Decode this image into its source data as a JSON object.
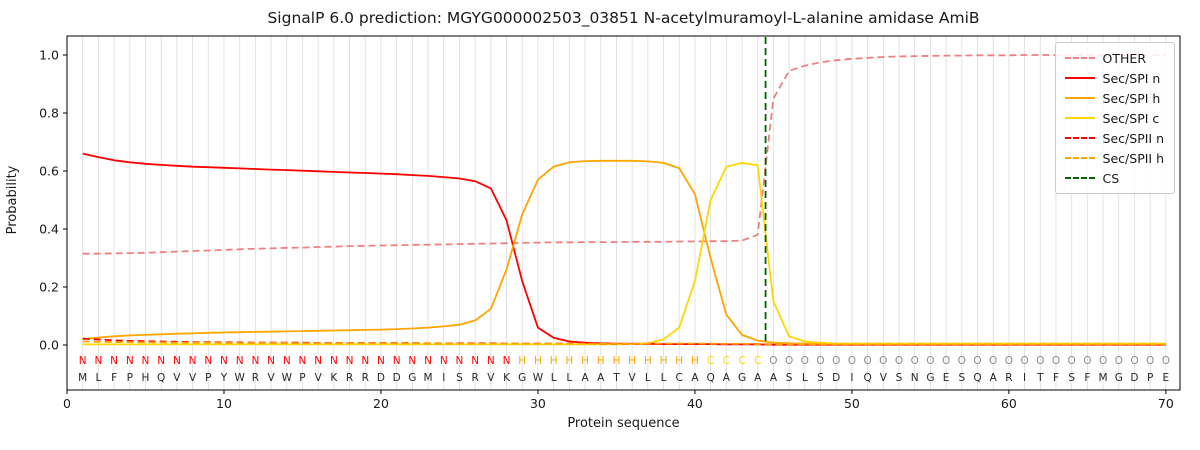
{
  "title": "SignalP 6.0 prediction: MGYG000002503_03851 N-acetylmuramoyl-L-alanine amidase AmiB",
  "colors": {
    "grid": "#dcdcdc",
    "frame": "#000000",
    "text": "#1a1a1a",
    "sequence_letter": "#262626",
    "other": "#f08080",
    "sec_spi_n": "#ff0000",
    "sec_spi_h": "#ffa500",
    "sec_spi_c": "#ffd700",
    "sec_spii_n": "#ff0000",
    "sec_spii_h": "#ffa500",
    "cs": "#006400"
  },
  "chart_data": {
    "type": "line",
    "title": "SignalP 6.0 prediction: MGYG000002503_03851 N-acetylmuramoyl-L-alanine amidase AmiB",
    "xlabel": "Protein sequence",
    "ylabel": "Probability",
    "xlim": [
      0,
      70.9
    ],
    "ylim": [
      0.0,
      1.0
    ],
    "x_range": [
      1,
      70
    ],
    "xticks": [
      0,
      10,
      20,
      30,
      40,
      50,
      60,
      70
    ],
    "yticks": [
      0.0,
      0.2,
      0.4,
      0.6,
      0.8,
      1.0
    ],
    "grid": "vertical line per residue",
    "legend_position": "upper right",
    "sequence": "MLFPHQVVPYWRVWPVKRRDDGMISRVKGWLLAATVLLCAQAGAASLSDIQVSNGESQARITFSFMGDPE",
    "region_labels": "NNNNNNNNNNNNNNNNNNNNNNNNNNNNHHHHHHHHHHHHCCCCOOOOOOOOOOOOOOOOOOOOOOOOOO",
    "region_colors": {
      "N": "#ff0000",
      "H": "#ffa500",
      "C": "#ffd700",
      "O": "#8c8c8c"
    },
    "series": [
      {
        "name": "OTHER",
        "style": "dashed",
        "color": "#f08080",
        "values": [
          0.315,
          0.315,
          0.316,
          0.317,
          0.318,
          0.32,
          0.322,
          0.324,
          0.326,
          0.328,
          0.33,
          0.332,
          0.333,
          0.335,
          0.336,
          0.338,
          0.339,
          0.341,
          0.342,
          0.343,
          0.344,
          0.345,
          0.346,
          0.347,
          0.348,
          0.349,
          0.35,
          0.351,
          0.352,
          0.353,
          0.354,
          0.354,
          0.355,
          0.355,
          0.355,
          0.356,
          0.356,
          0.356,
          0.357,
          0.357,
          0.358,
          0.358,
          0.36,
          0.38,
          0.85,
          0.945,
          0.963,
          0.975,
          0.982,
          0.987,
          0.99,
          0.993,
          0.995,
          0.996,
          0.997,
          0.998,
          0.998,
          0.999,
          0.999,
          0.999,
          1.0,
          1.0,
          1.0,
          1.0,
          1.0,
          1.0,
          1.0,
          1.0,
          1.0,
          1.0
        ]
      },
      {
        "name": "Sec/SPI n",
        "style": "solid",
        "color": "#ff0000",
        "values": [
          0.66,
          0.648,
          0.637,
          0.63,
          0.625,
          0.621,
          0.618,
          0.615,
          0.613,
          0.611,
          0.609,
          0.607,
          0.605,
          0.603,
          0.601,
          0.599,
          0.597,
          0.595,
          0.593,
          0.591,
          0.589,
          0.586,
          0.583,
          0.579,
          0.574,
          0.565,
          0.54,
          0.43,
          0.22,
          0.06,
          0.025,
          0.012,
          0.008,
          0.006,
          0.005,
          0.004,
          0.004,
          0.003,
          0.003,
          0.003,
          0.003,
          0.002,
          0.002,
          0.002,
          0.001,
          0.001,
          0.001,
          0.001,
          0.001,
          0.001,
          0.001,
          0.001,
          0.001,
          0.001,
          0.001,
          0.001,
          0.001,
          0.001,
          0.001,
          0.001,
          0.001,
          0.001,
          0.001,
          0.001,
          0.001,
          0.001,
          0.001,
          0.001,
          0.001,
          0.001
        ]
      },
      {
        "name": "Sec/SPI h",
        "style": "solid",
        "color": "#ffa500",
        "values": [
          0.02,
          0.026,
          0.03,
          0.033,
          0.035,
          0.037,
          0.039,
          0.04,
          0.042,
          0.043,
          0.044,
          0.045,
          0.046,
          0.047,
          0.048,
          0.049,
          0.05,
          0.051,
          0.052,
          0.053,
          0.055,
          0.057,
          0.06,
          0.064,
          0.07,
          0.085,
          0.125,
          0.26,
          0.45,
          0.57,
          0.615,
          0.63,
          0.634,
          0.635,
          0.635,
          0.635,
          0.633,
          0.628,
          0.61,
          0.52,
          0.3,
          0.105,
          0.035,
          0.015,
          0.008,
          0.006,
          0.005,
          0.004,
          0.004,
          0.004,
          0.004,
          0.004,
          0.004,
          0.004,
          0.004,
          0.004,
          0.004,
          0.004,
          0.004,
          0.004,
          0.004,
          0.004,
          0.004,
          0.004,
          0.004,
          0.004,
          0.004,
          0.004,
          0.004,
          0.004
        ]
      },
      {
        "name": "Sec/SPI c",
        "style": "solid",
        "color": "#ffd700",
        "values": [
          0.002,
          0.002,
          0.002,
          0.002,
          0.002,
          0.002,
          0.002,
          0.002,
          0.002,
          0.002,
          0.002,
          0.002,
          0.002,
          0.002,
          0.002,
          0.002,
          0.002,
          0.002,
          0.002,
          0.002,
          0.002,
          0.002,
          0.002,
          0.002,
          0.002,
          0.002,
          0.002,
          0.002,
          0.002,
          0.002,
          0.002,
          0.002,
          0.002,
          0.002,
          0.002,
          0.003,
          0.006,
          0.02,
          0.06,
          0.22,
          0.5,
          0.615,
          0.628,
          0.62,
          0.15,
          0.03,
          0.012,
          0.008,
          0.005,
          0.005,
          0.005,
          0.005,
          0.005,
          0.005,
          0.005,
          0.005,
          0.005,
          0.005,
          0.005,
          0.005,
          0.005,
          0.005,
          0.005,
          0.005,
          0.005,
          0.005,
          0.005,
          0.005,
          0.005,
          0.005
        ]
      },
      {
        "name": "Sec/SPII n",
        "style": "dashed",
        "color": "#ff0000",
        "values": [
          0.022,
          0.019,
          0.016,
          0.014,
          0.013,
          0.012,
          0.011,
          0.01,
          0.01,
          0.009,
          0.009,
          0.008,
          0.008,
          0.008,
          0.008,
          0.007,
          0.007,
          0.007,
          0.007,
          0.007,
          0.007,
          0.007,
          0.006,
          0.006,
          0.006,
          0.006,
          0.006,
          0.005,
          0.005,
          0.005,
          0.005,
          0.005,
          0.005,
          0.004,
          0.004,
          0.004,
          0.004,
          0.004,
          0.004,
          0.004,
          0.004,
          0.003,
          0.003,
          0.003,
          0.002,
          0.002,
          0.002,
          0.002,
          0.002,
          0.002,
          0.002,
          0.002,
          0.002,
          0.002,
          0.002,
          0.002,
          0.002,
          0.002,
          0.002,
          0.002,
          0.002,
          0.002,
          0.002,
          0.002,
          0.002,
          0.002,
          0.002,
          0.002,
          0.002,
          0.002
        ]
      },
      {
        "name": "Sec/SPII h",
        "style": "dashed",
        "color": "#ffa500",
        "values": [
          0.012,
          0.011,
          0.01,
          0.01,
          0.009,
          0.009,
          0.008,
          0.008,
          0.008,
          0.007,
          0.007,
          0.007,
          0.007,
          0.007,
          0.006,
          0.006,
          0.006,
          0.006,
          0.006,
          0.006,
          0.006,
          0.006,
          0.006,
          0.006,
          0.005,
          0.005,
          0.005,
          0.005,
          0.005,
          0.005,
          0.005,
          0.005,
          0.005,
          0.005,
          0.005,
          0.005,
          0.005,
          0.005,
          0.005,
          0.005,
          0.004,
          0.004,
          0.004,
          0.003,
          0.002,
          0.002,
          0.002,
          0.002,
          0.002,
          0.002,
          0.002,
          0.002,
          0.002,
          0.002,
          0.002,
          0.002,
          0.002,
          0.002,
          0.002,
          0.002,
          0.002,
          0.002,
          0.002,
          0.002,
          0.002,
          0.002,
          0.002,
          0.002,
          0.002,
          0.002
        ]
      }
    ],
    "cs_line": {
      "label": "CS",
      "style": "dashed",
      "color": "#006400",
      "x": 44.5
    }
  },
  "legend": {
    "items": [
      {
        "label": "OTHER",
        "color": "#f08080",
        "style": "dashed"
      },
      {
        "label": "Sec/SPI n",
        "color": "#ff0000",
        "style": "solid"
      },
      {
        "label": "Sec/SPI h",
        "color": "#ffa500",
        "style": "solid"
      },
      {
        "label": "Sec/SPI c",
        "color": "#ffd700",
        "style": "solid"
      },
      {
        "label": "Sec/SPII n",
        "color": "#ff0000",
        "style": "dashed"
      },
      {
        "label": "Sec/SPII h",
        "color": "#ffa500",
        "style": "dashed"
      },
      {
        "label": "CS",
        "color": "#006400",
        "style": "dashed"
      }
    ]
  }
}
